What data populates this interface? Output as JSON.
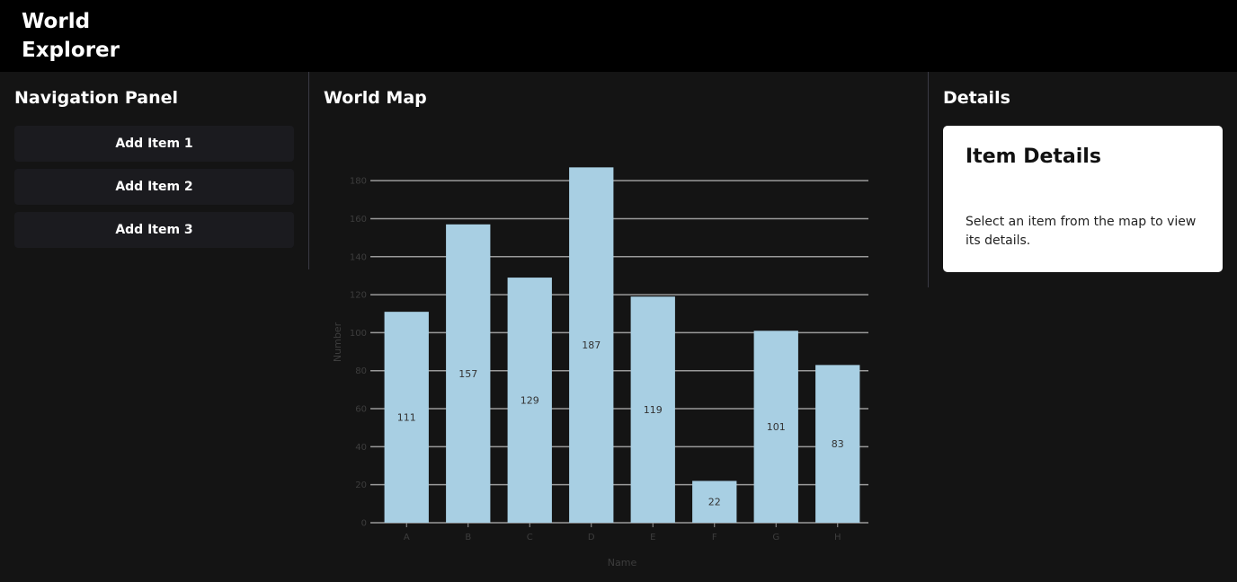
{
  "app": {
    "title": "World Explorer"
  },
  "nav_panel": {
    "title": "Navigation Panel",
    "items": [
      {
        "label": "Add Item 1"
      },
      {
        "label": "Add Item 2"
      },
      {
        "label": "Add Item 3"
      }
    ]
  },
  "map_panel": {
    "title": "World Map"
  },
  "details_panel": {
    "title": "Details",
    "card_title": "Item Details",
    "card_text": "Select an item from the map to view its details."
  },
  "colors": {
    "bar": "#a8cfe3",
    "grid": "#9a9a9a",
    "background": "#141414",
    "header": "#000000"
  },
  "chart_data": {
    "type": "bar",
    "categories": [
      "A",
      "B",
      "C",
      "D",
      "E",
      "F",
      "G",
      "H"
    ],
    "values": [
      111,
      157,
      129,
      187,
      119,
      22,
      101,
      83
    ],
    "xlabel": "Name",
    "ylabel": "Number",
    "ylim": [
      0,
      190
    ],
    "yticks": [
      0,
      20,
      40,
      60,
      80,
      100,
      120,
      140,
      160,
      180
    ],
    "grid": true,
    "data_labels": true
  }
}
